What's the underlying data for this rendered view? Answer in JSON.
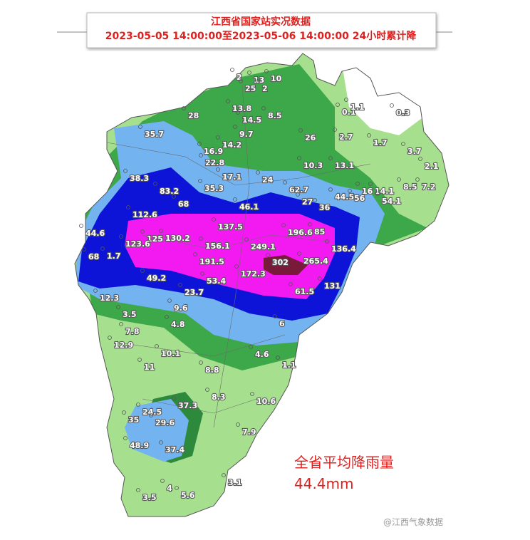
{
  "title": {
    "line1": "江西省国家站实况数据",
    "line2": "2023-05-05 14:00:00至2023-05-06 14:00:00 24小时累计降"
  },
  "stations": [
    "2",
    "13",
    "10",
    "25",
    "2",
    "13.8",
    "14.5",
    "8.5",
    "28",
    "35.7",
    "9.7",
    "26",
    "0.1",
    "1.1",
    "0.3",
    "2.7",
    "1.7",
    "3.7",
    "16.9",
    "14.2",
    "22.8",
    "10.3",
    "13.1",
    "2.1",
    "38.3",
    "17.1",
    "24",
    "8.5",
    "7.2",
    "83.2",
    "35.3",
    "62.7",
    "44.5",
    "16",
    "14.1",
    "54.1",
    "68",
    "46.1",
    "27",
    "36",
    "56",
    "112.6",
    "137.5",
    "196.6",
    "85",
    "44.6",
    "125",
    "130.2",
    "123.6",
    "156.1",
    "249.1",
    "136.4",
    "68",
    "1.7",
    "191.5",
    "302",
    "265.4",
    "49.2",
    "172.3",
    "53.4",
    "131",
    "61.5",
    "23.7",
    "12.3",
    "9.6",
    "3.5",
    "4.8",
    "6",
    "7.8",
    "12.9",
    "10.1",
    "4.6",
    "1.1",
    "11",
    "8.8",
    "8.3",
    "10.6",
    "37.3",
    "24.5",
    "35",
    "29.6",
    "7.9",
    "48.9",
    "37.4",
    "4",
    "5.6",
    "3.1",
    "3.5"
  ],
  "average": {
    "label": "全省平均降雨量",
    "value": "44.4mm"
  },
  "watermark": "@江西气象数据"
}
